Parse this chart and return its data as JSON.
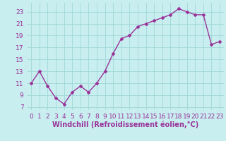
{
  "x": [
    0,
    1,
    2,
    3,
    4,
    5,
    6,
    7,
    8,
    9,
    10,
    11,
    12,
    13,
    14,
    15,
    16,
    17,
    18,
    19,
    20,
    21,
    22,
    23
  ],
  "y": [
    11,
    13,
    10.5,
    8.5,
    7.5,
    9.5,
    10.5,
    9.5,
    11,
    13,
    16,
    18.5,
    19,
    20.5,
    21,
    21.5,
    22,
    22.5,
    23.5,
    23,
    22.5,
    22.5,
    17.5,
    18
  ],
  "line_color": "#993399",
  "marker": "D",
  "marker_size": 2.0,
  "bg_color": "#c8eef0",
  "grid_color": "#a0d8d8",
  "tick_color": "#993399",
  "label_color": "#993399",
  "xlabel": "Windchill (Refroidissement éolien,°C)",
  "yticks": [
    7,
    9,
    11,
    13,
    15,
    17,
    19,
    21,
    23
  ],
  "xticks": [
    0,
    1,
    2,
    3,
    4,
    5,
    6,
    7,
    8,
    9,
    10,
    11,
    12,
    13,
    14,
    15,
    16,
    17,
    18,
    19,
    20,
    21,
    22,
    23
  ],
  "ylim": [
    6.5,
    24.5
  ],
  "xlim": [
    -0.5,
    23.5
  ],
  "font_size": 6.5,
  "xlabel_fontsize": 7,
  "line_width": 1.0
}
